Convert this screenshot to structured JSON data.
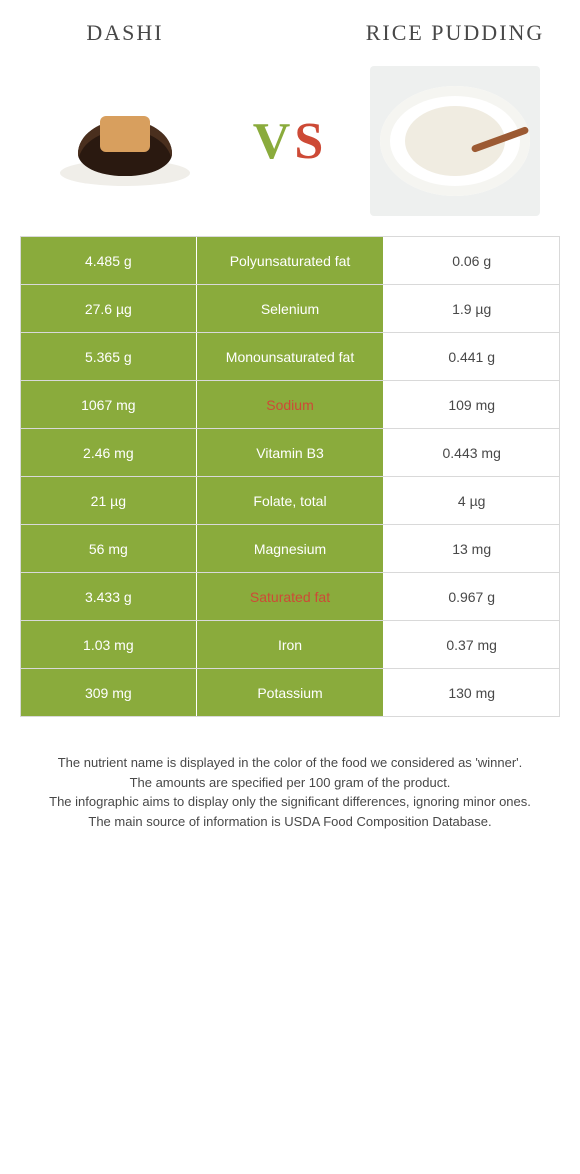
{
  "header": {
    "left_title": "Dashi",
    "right_title": "Rice Pudding",
    "vs_letter1": "V",
    "vs_letter2": "S",
    "vs_fontsize": "52px"
  },
  "colors": {
    "winner_bg": "#8aab3c",
    "winner_text": "#ffffff",
    "loser_bg": "#ffffff",
    "loser_text": "#484848",
    "loser_label_text": "#cd4a36",
    "border": "#d9d9d9"
  },
  "rows": [
    {
      "label": "Polyunsaturated fat",
      "left": "4.485 g",
      "right": "0.06 g",
      "winner": "left"
    },
    {
      "label": "Selenium",
      "left": "27.6 µg",
      "right": "1.9 µg",
      "winner": "left"
    },
    {
      "label": "Monounsaturated fat",
      "left": "5.365 g",
      "right": "0.441 g",
      "winner": "left"
    },
    {
      "label": "Sodium",
      "left": "1067 mg",
      "right": "109 mg",
      "winner": "right"
    },
    {
      "label": "Vitamin B3",
      "left": "2.46 mg",
      "right": "0.443 mg",
      "winner": "left"
    },
    {
      "label": "Folate, total",
      "left": "21 µg",
      "right": "4 µg",
      "winner": "left"
    },
    {
      "label": "Magnesium",
      "left": "56 mg",
      "right": "13 mg",
      "winner": "left"
    },
    {
      "label": "Saturated fat",
      "left": "3.433 g",
      "right": "0.967 g",
      "winner": "right"
    },
    {
      "label": "Iron",
      "left": "1.03 mg",
      "right": "0.37 mg",
      "winner": "left"
    },
    {
      "label": "Potassium",
      "left": "309 mg",
      "right": "130 mg",
      "winner": "left"
    }
  ],
  "footer": {
    "line1": "The nutrient name is displayed in the color of the food we considered as 'winner'.",
    "line2": "The amounts are specified per 100 gram of the product.",
    "line3": "The infographic aims to display only the significant differences, ignoring minor ones.",
    "line4": "The main source of information is USDA Food Composition Database."
  }
}
